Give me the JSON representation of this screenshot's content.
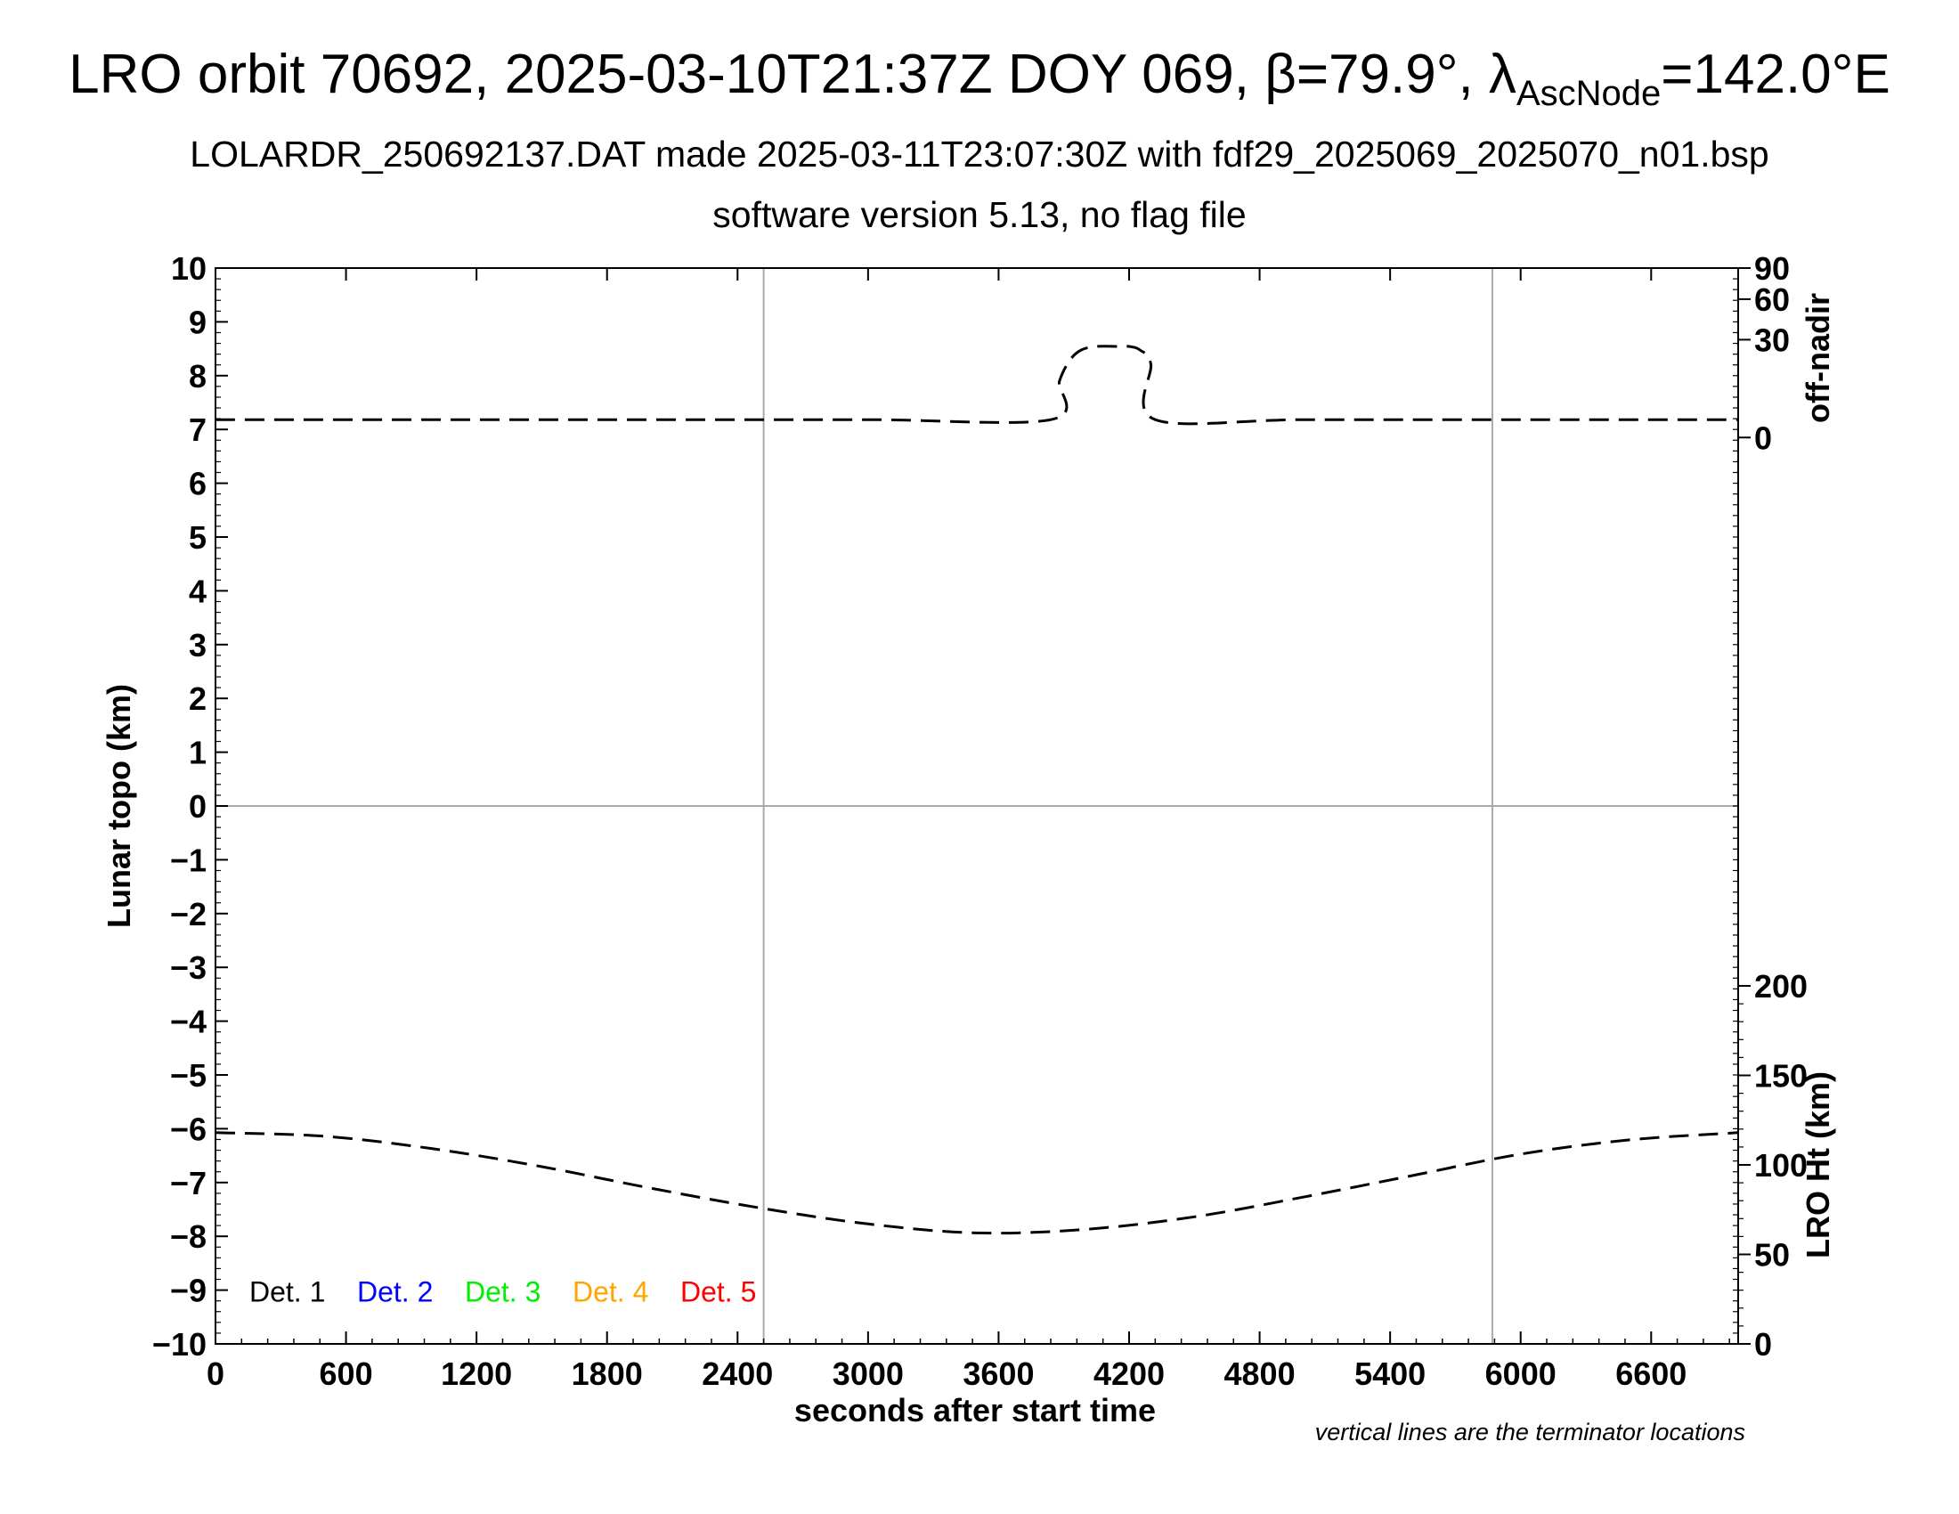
{
  "header": {
    "title_prefix": "LRO orbit 70692, 2025-03-10T21:37Z DOY 069, β=79.9°, λ",
    "title_sub": "AscNode",
    "title_suffix": "=142.0°E",
    "subtitle1": "LOLARDR_250692137.DAT made 2025-03-11T23:07:30Z with fdf29_2025069_2025070_n01.bsp",
    "subtitle2": "software version 5.13, no flag file"
  },
  "chart_data": {
    "type": "line",
    "xlabel": "seconds after start time",
    "ylabel_left": "Lunar topo (km)",
    "ylabel_right_top": "off-nadir",
    "ylabel_right_bottom": "LRO Ht (km)",
    "xlim": [
      0,
      7000
    ],
    "ylim_left": [
      -10,
      10
    ],
    "x_ticks": [
      "0",
      "600",
      "1200",
      "1800",
      "2400",
      "3000",
      "3600",
      "4200",
      "4800",
      "5400",
      "6000",
      "6600"
    ],
    "y_ticks_left": [
      "10",
      "9",
      "8",
      "7",
      "6",
      "5",
      "4",
      "3",
      "2",
      "1",
      "0",
      "−1",
      "−2",
      "−3",
      "−4",
      "−5",
      "−6",
      "−7",
      "−8",
      "−9",
      "−10"
    ],
    "right_top_ticks": [
      "90",
      "60",
      "30",
      "0"
    ],
    "right_bottom_ticks": [
      "200",
      "150",
      "100",
      "50",
      "0"
    ],
    "terminator_lines_x": [
      2520,
      5870
    ],
    "zero_line_y": 0,
    "legend": [
      {
        "label": "Det. 1",
        "color": "#000000"
      },
      {
        "label": "Det. 2",
        "color": "#0000ff"
      },
      {
        "label": "Det. 3",
        "color": "#00ee00"
      },
      {
        "label": "Det. 4",
        "color": "#ffa500"
      },
      {
        "label": "Det. 5",
        "color": "#ff0000"
      }
    ],
    "note": "vertical lines are the terminator locations",
    "series": [
      {
        "axis": "off-nadir",
        "x": [
          0,
          1000,
          2000,
          3000,
          3840,
          3880,
          3930,
          3980,
          4050,
          4150,
          4200,
          4250,
          4300,
          4320,
          5000,
          6000,
          7000
        ],
        "y": [
          1,
          1,
          1,
          1,
          1,
          10,
          19,
          24,
          26,
          26,
          26,
          24,
          17,
          1,
          1,
          1,
          1
        ]
      },
      {
        "axis": "LRO Ht",
        "x": [
          0,
          500,
          1000,
          1500,
          2000,
          2500,
          3000,
          3500,
          4000,
          4500,
          5000,
          5500,
          6000,
          6500,
          7000
        ],
        "y": [
          118,
          116,
          109,
          99,
          87,
          76,
          67,
          62,
          64,
          71,
          82,
          94,
          106,
          114,
          118
        ]
      }
    ]
  }
}
